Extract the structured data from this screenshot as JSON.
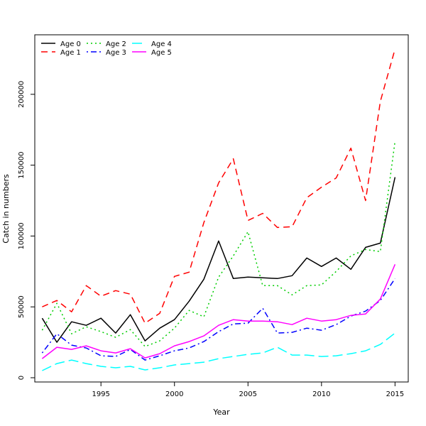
{
  "chart_data": {
    "type": "line",
    "title": "",
    "xlabel": "Year",
    "ylabel": "Catch in numbers",
    "x": [
      1991,
      1992,
      1993,
      1994,
      1995,
      1996,
      1997,
      1998,
      1999,
      2000,
      2001,
      2002,
      2003,
      2004,
      2005,
      2006,
      2007,
      2008,
      2009,
      2010,
      2011,
      2012,
      2013,
      2014,
      2015
    ],
    "xlim": [
      1990.5,
      2015.9
    ],
    "ylim": [
      -3000,
      242000
    ],
    "x_ticks": [
      1995,
      2000,
      2005,
      2010,
      2015
    ],
    "x_tick_labels": [
      "1995",
      "2000",
      "2005",
      "2010",
      "2015"
    ],
    "y_ticks": [
      0,
      50000,
      100000,
      150000,
      200000
    ],
    "y_tick_labels": [
      "0",
      "50000",
      "100000",
      "150000",
      "200000"
    ],
    "grid": false,
    "legend_position": "top-left",
    "series": [
      {
        "name": "Age 0",
        "color": "#000000",
        "dash": "solid",
        "values": [
          42000,
          25000,
          39500,
          37000,
          42000,
          31500,
          44500,
          26000,
          35000,
          41000,
          54000,
          69500,
          96500,
          70000,
          71000,
          70500,
          70000,
          72000,
          84500,
          78500,
          84500,
          76500,
          92000,
          95000,
          141500
        ]
      },
      {
        "name": "Age 1",
        "color": "#ff0000",
        "dash": "dashed",
        "values": [
          50000,
          54500,
          46500,
          65000,
          57500,
          61500,
          59000,
          38500,
          45500,
          71500,
          74500,
          109500,
          137500,
          154500,
          111000,
          116000,
          106000,
          106500,
          127000,
          134500,
          141000,
          162000,
          125000,
          195000,
          232000
        ]
      },
      {
        "name": "Age 2",
        "color": "#00cd00",
        "dash": "dotted",
        "values": [
          33500,
          52500,
          31000,
          36000,
          32500,
          28500,
          34000,
          22000,
          26000,
          35000,
          47500,
          43000,
          71000,
          86000,
          103000,
          65000,
          65000,
          58500,
          65000,
          65500,
          75000,
          86000,
          90500,
          89000,
          167000
        ]
      },
      {
        "name": "Age 3",
        "color": "#0000ff",
        "dash": "dotdash",
        "values": [
          17500,
          31000,
          23000,
          21000,
          15500,
          15000,
          20000,
          12500,
          15500,
          19000,
          21000,
          25500,
          32500,
          38000,
          38500,
          49000,
          31500,
          32000,
          35000,
          33500,
          37500,
          43500,
          47000,
          54500,
          70000
        ]
      },
      {
        "name": "Age 4",
        "color": "#00ffff",
        "dash": "longdash",
        "values": [
          5000,
          10000,
          12500,
          10000,
          8000,
          7000,
          8000,
          5500,
          7000,
          9000,
          10000,
          11000,
          13500,
          15000,
          16500,
          17500,
          21500,
          16000,
          16000,
          15000,
          15500,
          17000,
          19000,
          23500,
          31500
        ]
      },
      {
        "name": "Age 5",
        "color": "#ff00ff",
        "dash": "solid",
        "values": [
          13500,
          21500,
          20000,
          22500,
          19000,
          17500,
          20500,
          14000,
          17000,
          22500,
          25500,
          29500,
          37000,
          41000,
          40000,
          40000,
          39500,
          37500,
          42000,
          40000,
          41000,
          44000,
          45000,
          55500,
          80000
        ]
      }
    ]
  }
}
